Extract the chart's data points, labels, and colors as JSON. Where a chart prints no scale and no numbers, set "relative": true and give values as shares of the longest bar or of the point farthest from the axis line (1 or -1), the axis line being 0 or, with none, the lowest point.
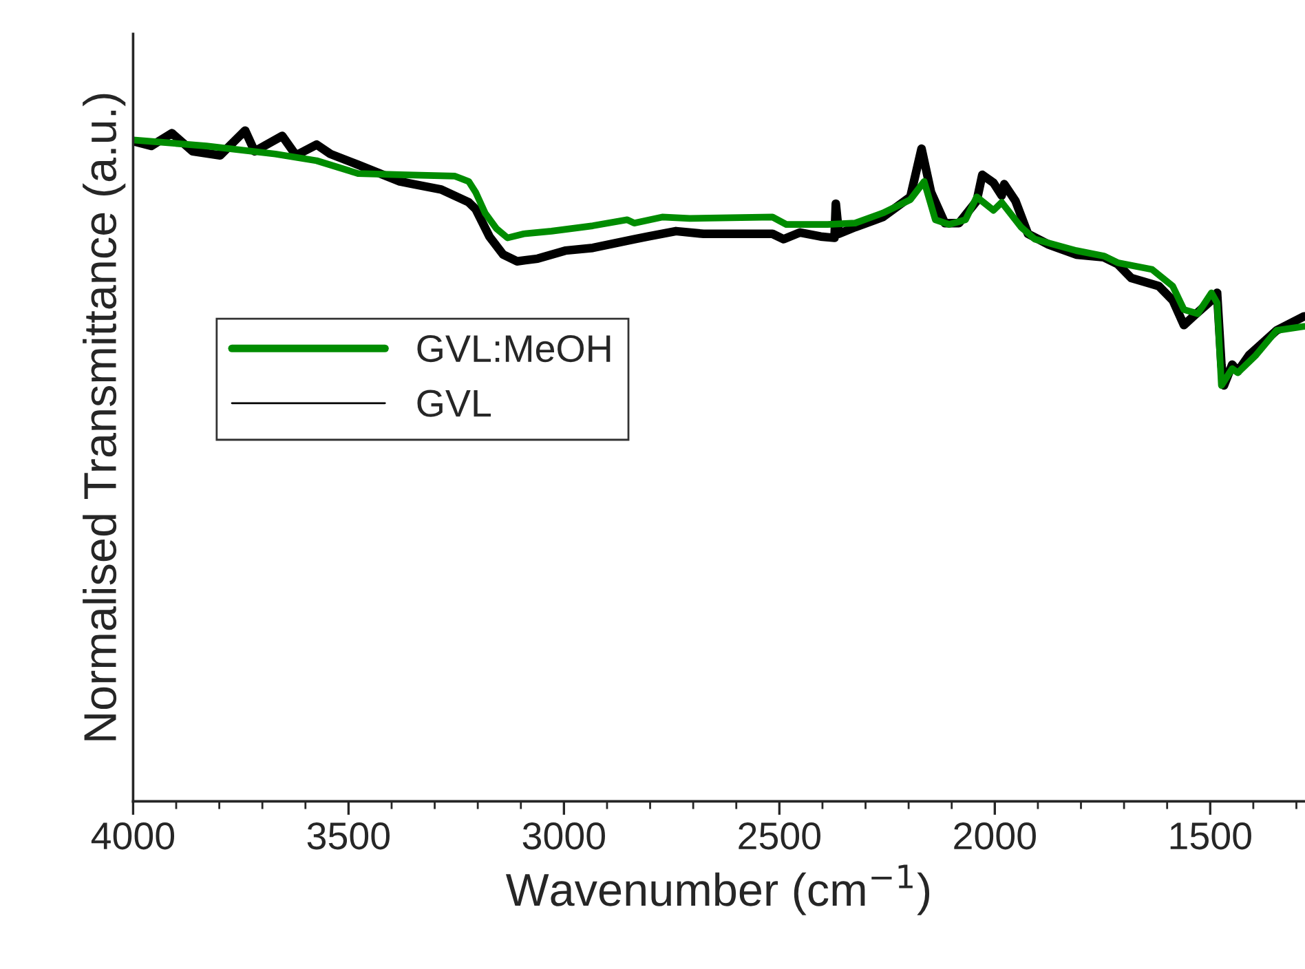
{
  "chart_data": {
    "type": "line",
    "relative": true,
    "xlabel": "Wavenumber (cm$^{−1}$)",
    "ylabel": "Normalised Transmittance (a.u.)",
    "xlim": [
      4000,
      1280
    ],
    "xticks": [
      4000,
      3500,
      3000,
      2500,
      2000,
      1500
    ],
    "grid": false,
    "legend": "left",
    "line_style": "solid",
    "marker": "none",
    "series": [
      {
        "name": "GVL",
        "color": "#000000",
        "x": [
          4000,
          3958,
          3910,
          3862,
          3798,
          3740,
          3718,
          3654,
          3622,
          3574,
          3542,
          3478,
          3381,
          3349,
          3285,
          3221,
          3205,
          3173,
          3141,
          3109,
          3061,
          2997,
          2933,
          2837,
          2805,
          2740,
          2676,
          2516,
          2490,
          2452,
          2404,
          2372,
          2369,
          2362,
          2324,
          2260,
          2196,
          2170,
          2148,
          2116,
          2083,
          2042,
          2029,
          2003,
          1984,
          1978,
          1952,
          1923,
          1875,
          1811,
          1747,
          1715,
          1683,
          1619,
          1587,
          1561,
          1539,
          1497,
          1484,
          1474,
          1468,
          1449,
          1436,
          1410,
          1346,
          1282
        ],
        "values": [
          0.984,
          0.977,
          0.996,
          0.969,
          0.963,
          1.0,
          0.969,
          0.992,
          0.963,
          0.979,
          0.965,
          0.949,
          0.924,
          0.92,
          0.912,
          0.893,
          0.883,
          0.842,
          0.815,
          0.805,
          0.809,
          0.821,
          0.825,
          0.838,
          0.842,
          0.85,
          0.846,
          0.846,
          0.838,
          0.848,
          0.842,
          0.84,
          0.891,
          0.846,
          0.856,
          0.871,
          0.901,
          0.973,
          0.908,
          0.862,
          0.862,
          0.895,
          0.934,
          0.922,
          0.903,
          0.92,
          0.895,
          0.846,
          0.83,
          0.815,
          0.811,
          0.801,
          0.78,
          0.768,
          0.747,
          0.71,
          0.723,
          0.747,
          0.758,
          0.651,
          0.62,
          0.651,
          0.641,
          0.665,
          0.702,
          0.723
        ]
      },
      {
        "name": "GVL:MeOH",
        "color": "#008c00",
        "x": [
          4000,
          3830,
          3670,
          3574,
          3478,
          3381,
          3253,
          3221,
          3205,
          3183,
          3157,
          3131,
          3093,
          3029,
          2933,
          2853,
          2837,
          2772,
          2708,
          2516,
          2484,
          2388,
          2324,
          2260,
          2196,
          2164,
          2138,
          2106,
          2068,
          2042,
          2003,
          1984,
          1939,
          1907,
          1811,
          1747,
          1715,
          1635,
          1587,
          1561,
          1529,
          1497,
          1484,
          1474,
          1449,
          1436,
          1394,
          1346,
          1282
        ],
        "values": [
          0.986,
          0.977,
          0.965,
          0.955,
          0.936,
          0.934,
          0.932,
          0.924,
          0.908,
          0.877,
          0.854,
          0.84,
          0.846,
          0.85,
          0.858,
          0.867,
          0.862,
          0.871,
          0.869,
          0.871,
          0.86,
          0.86,
          0.862,
          0.877,
          0.897,
          0.924,
          0.867,
          0.86,
          0.867,
          0.901,
          0.881,
          0.893,
          0.856,
          0.838,
          0.821,
          0.813,
          0.803,
          0.793,
          0.768,
          0.733,
          0.727,
          0.758,
          0.743,
          0.62,
          0.645,
          0.639,
          0.665,
          0.702,
          0.708
        ]
      }
    ]
  }
}
